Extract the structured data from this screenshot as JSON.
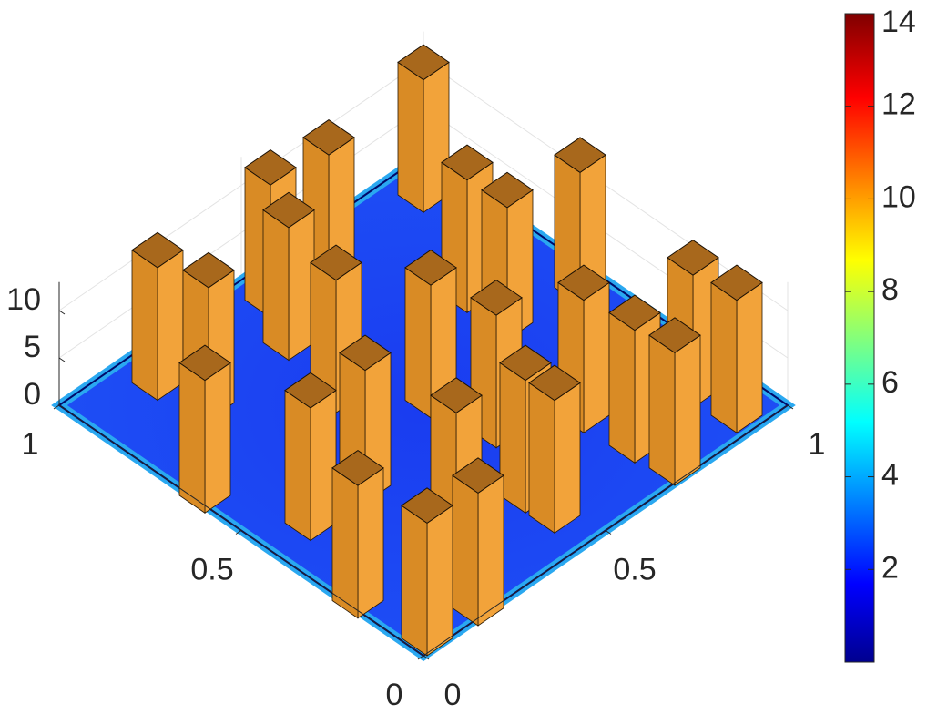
{
  "chart_data": {
    "type": "surface3d",
    "xlim": [
      0,
      1
    ],
    "ylim": [
      0,
      1
    ],
    "zlim": [
      0,
      13
    ],
    "xticks": [
      0,
      0.5,
      1
    ],
    "yticks": [
      0,
      0.5,
      1
    ],
    "zticks": [
      0,
      5,
      10
    ],
    "grid": true,
    "pillar_color": "#f2a33a",
    "colorbar": {
      "clim": [
        0,
        14
      ],
      "ticks": [
        2,
        4,
        6,
        8,
        10,
        12,
        14
      ]
    },
    "pillars": [
      {
        "x": 0.92,
        "y": 0.92,
        "h": 14
      },
      {
        "x": 0.9,
        "y": 0.64,
        "h": 14
      },
      {
        "x": 0.92,
        "y": 0.5,
        "h": 14
      },
      {
        "x": 0.91,
        "y": 0.18,
        "h": 14
      },
      {
        "x": 0.8,
        "y": 0.21,
        "h": 14
      },
      {
        "x": 0.62,
        "y": 0.02,
        "h": 14
      },
      {
        "x": 0.81,
        "y": 0.44,
        "h": 14
      },
      {
        "x": 0.64,
        "y": 0.4,
        "h": 14
      },
      {
        "x": 0.42,
        "y": 0.26,
        "h": 14
      },
      {
        "x": 0.42,
        "y": 0.11,
        "h": 14
      },
      {
        "x": 0.2,
        "y": 0.02,
        "h": 14
      },
      {
        "x": 0.03,
        "y": 0.04,
        "h": 14
      },
      {
        "x": 0.02,
        "y": 0.17,
        "h": 14
      },
      {
        "x": 0.21,
        "y": 0.3,
        "h": 14
      },
      {
        "x": 0.5,
        "y": 0.52,
        "h": 14
      },
      {
        "x": 0.35,
        "y": 0.55,
        "h": 14
      },
      {
        "x": 0.18,
        "y": 0.46,
        "h": 14
      },
      {
        "x": 0.1,
        "y": 0.46,
        "h": 14
      },
      {
        "x": 0.55,
        "y": 0.78,
        "h": 14
      },
      {
        "x": 0.52,
        "y": 0.95,
        "h": 14
      },
      {
        "x": 0.66,
        "y": 0.78,
        "h": 14
      },
      {
        "x": 0.26,
        "y": 0.7,
        "h": 14
      },
      {
        "x": 0.13,
        "y": 0.71,
        "h": 14
      },
      {
        "x": 0.16,
        "y": 0.9,
        "h": 14
      },
      {
        "x": 0.05,
        "y": 0.91,
        "h": 14
      },
      {
        "x": 0.03,
        "y": 0.72,
        "h": 14
      }
    ]
  }
}
